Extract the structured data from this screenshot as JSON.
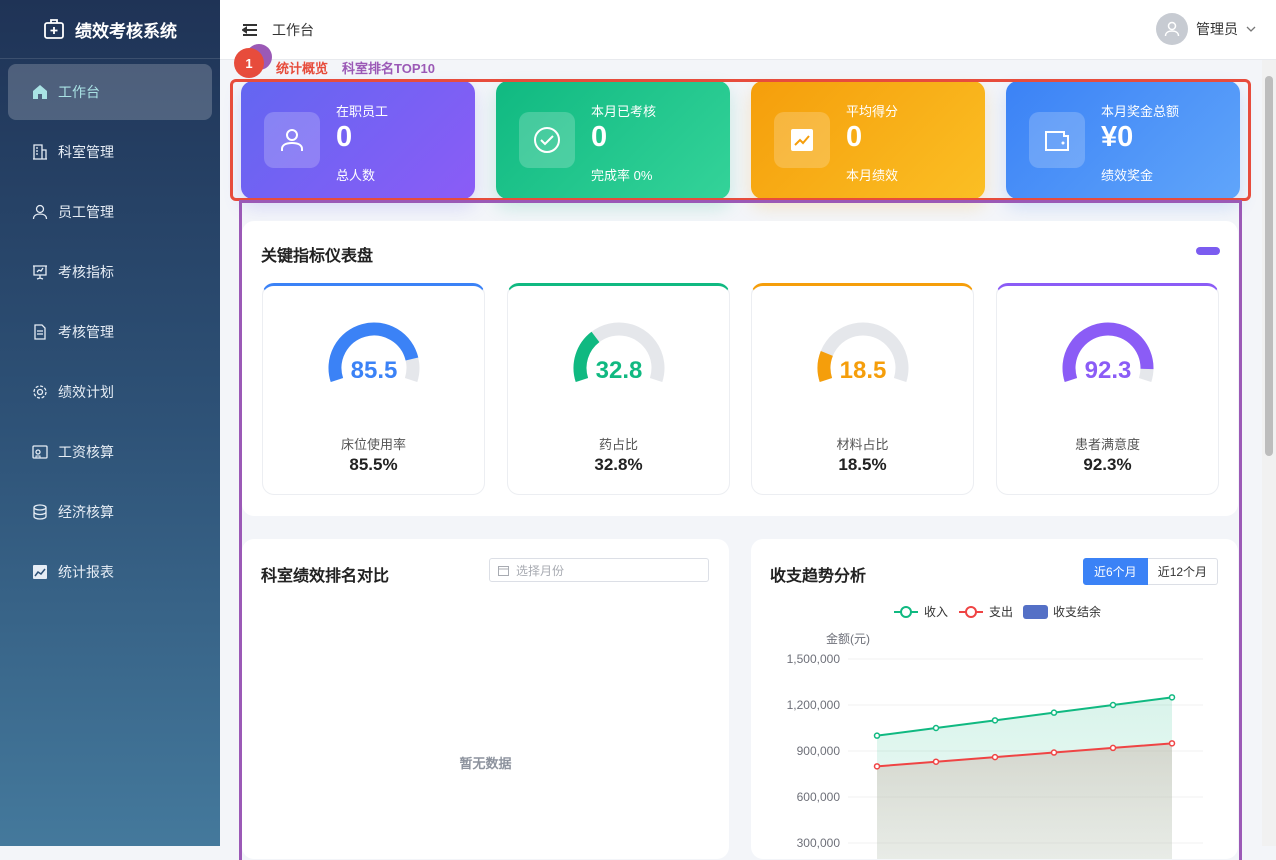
{
  "app": {
    "title": "绩效考核系统"
  },
  "sidebar": {
    "items": [
      {
        "label": "工作台",
        "icon": "home-icon",
        "active": true
      },
      {
        "label": "科室管理",
        "icon": "building-icon"
      },
      {
        "label": "员工管理",
        "icon": "user-icon"
      },
      {
        "label": "考核指标",
        "icon": "presentation-icon"
      },
      {
        "label": "考核管理",
        "icon": "document-icon"
      },
      {
        "label": "绩效计划",
        "icon": "gear-icon"
      },
      {
        "label": "工资核算",
        "icon": "wallet-icon"
      },
      {
        "label": "经济核算",
        "icon": "database-icon"
      },
      {
        "label": "统计报表",
        "icon": "chart-icon"
      }
    ]
  },
  "header": {
    "breadcrumb": "工作台",
    "user": "管理员"
  },
  "overlay": {
    "badge": "1",
    "label_a": "科室排名TOP10",
    "label_b": "统计概览"
  },
  "stats": [
    {
      "label": "在职员工",
      "value": "0",
      "sub": "总人数",
      "color": "#6c5ce7"
    },
    {
      "label": "本月已考核",
      "value": "0",
      "sub": "完成率 0%",
      "color": "#10b981"
    },
    {
      "label": "平均得分",
      "value": "0",
      "sub": "本月绩效",
      "color": "#f59e0b"
    },
    {
      "label": "本月奖金总额",
      "value": "¥0",
      "sub": "绩效奖金",
      "color": "#3b82f6"
    }
  ],
  "gauges": {
    "title": "关键指标仪表盘",
    "items": [
      {
        "name": "床位使用率",
        "value": 85.5,
        "display": "85.5",
        "text": "85.5%",
        "color": "#3b82f6"
      },
      {
        "name": "药占比",
        "value": 32.8,
        "display": "32.8",
        "text": "32.8%",
        "color": "#10b981"
      },
      {
        "name": "材料占比",
        "value": 18.5,
        "display": "18.5",
        "text": "18.5%",
        "color": "#f59e0b"
      },
      {
        "name": "患者满意度",
        "value": 92.3,
        "display": "92.3",
        "text": "92.3%",
        "color": "#8b5cf6"
      }
    ]
  },
  "ranking": {
    "title": "科室绩效排名对比",
    "month_placeholder": "选择月份",
    "empty": "暂无数据"
  },
  "trend": {
    "title": "收支趋势分析",
    "tabs": [
      "近6个月",
      "近12个月"
    ],
    "active_tab": 0
  },
  "chart_data": {
    "type": "line",
    "ylabel": "金额(元)",
    "ylim": [
      0,
      1500000
    ],
    "yticks": [
      "1,500,000",
      "1,200,000",
      "900,000",
      "600,000",
      "300,000"
    ],
    "grid": true,
    "legend": "top",
    "series": [
      {
        "name": "收入",
        "color": "#10b981",
        "values": [
          1000000,
          1050000,
          1100000,
          1150000,
          1200000,
          1250000
        ]
      },
      {
        "name": "支出",
        "color": "#ef4444",
        "values": [
          800000,
          830000,
          860000,
          890000,
          920000,
          950000
        ]
      },
      {
        "name": "收支结余",
        "color": "#5470c6",
        "values": []
      }
    ]
  }
}
